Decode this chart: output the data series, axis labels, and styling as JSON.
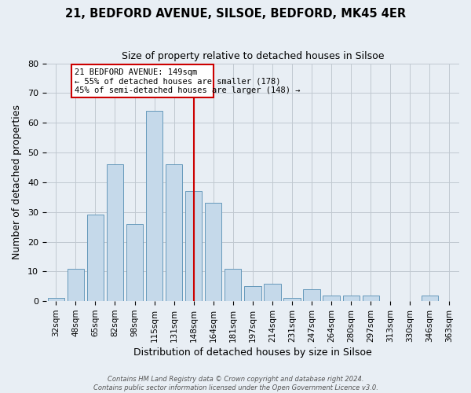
{
  "title": "21, BEDFORD AVENUE, SILSOE, BEDFORD, MK45 4ER",
  "subtitle": "Size of property relative to detached houses in Silsoe",
  "xlabel": "Distribution of detached houses by size in Silsoe",
  "ylabel": "Number of detached properties",
  "bar_labels": [
    "32sqm",
    "48sqm",
    "65sqm",
    "82sqm",
    "98sqm",
    "115sqm",
    "131sqm",
    "148sqm",
    "164sqm",
    "181sqm",
    "197sqm",
    "214sqm",
    "231sqm",
    "247sqm",
    "264sqm",
    "280sqm",
    "297sqm",
    "313sqm",
    "330sqm",
    "346sqm",
    "363sqm"
  ],
  "bar_values": [
    1,
    11,
    29,
    46,
    26,
    64,
    46,
    37,
    33,
    11,
    5,
    6,
    1,
    4,
    2,
    2,
    2,
    0,
    0,
    2,
    0
  ],
  "bar_color": "#c5d9ea",
  "bar_edge_color": "#6699bb",
  "vline_label": "148sqm",
  "vline_color": "#cc0000",
  "annotation_title": "21 BEDFORD AVENUE: 149sqm",
  "annotation_line2": "← 55% of detached houses are smaller (178)",
  "annotation_line3": "45% of semi-detached houses are larger (148) →",
  "annotation_box_color": "#cc0000",
  "annotation_bg": "#ffffff",
  "ylim": [
    0,
    80
  ],
  "yticks": [
    0,
    10,
    20,
    30,
    40,
    50,
    60,
    70,
    80
  ],
  "grid_color": "#c0c8d0",
  "bg_color": "#e8eef4",
  "footer1": "Contains HM Land Registry data © Crown copyright and database right 2024.",
  "footer2": "Contains public sector information licensed under the Open Government Licence v3.0."
}
